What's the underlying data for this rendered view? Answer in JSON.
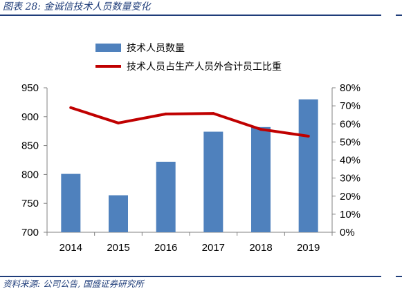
{
  "figure": {
    "title": "图表 28:  金诚信技术人员数量变化",
    "source": "资料来源:  公司公告,  国盛证券研究所"
  },
  "chart_data": {
    "type": "bar+line",
    "categories": [
      "2014",
      "2015",
      "2016",
      "2017",
      "2018",
      "2019"
    ],
    "series": [
      {
        "name": "技术人员数量",
        "type": "bar",
        "axis": "left",
        "color": "#4f81bd",
        "values": [
          801,
          764,
          822,
          874,
          882,
          930
        ]
      },
      {
        "name": "技术人员占生产人员外合计员工比重",
        "type": "line",
        "axis": "right",
        "color": "#c00000",
        "values": [
          0.69,
          0.605,
          0.655,
          0.658,
          0.57,
          0.532
        ]
      }
    ],
    "y_left": {
      "min": 700,
      "max": 950,
      "ticks": [
        "700",
        "750",
        "800",
        "850",
        "900",
        "950"
      ],
      "values": [
        700,
        750,
        800,
        850,
        900,
        950
      ]
    },
    "y_right": {
      "min": 0,
      "max": 0.8,
      "ticks": [
        "0%",
        "10%",
        "20%",
        "30%",
        "40%",
        "50%",
        "60%",
        "70%",
        "80%"
      ],
      "values": [
        0,
        0.1,
        0.2,
        0.3,
        0.4,
        0.5,
        0.6,
        0.7,
        0.8
      ]
    },
    "grid": false,
    "legend": "top-left"
  },
  "colors": {
    "accent": "#1f3d7a",
    "bar": "#4f81bd",
    "line": "#c00000"
  }
}
